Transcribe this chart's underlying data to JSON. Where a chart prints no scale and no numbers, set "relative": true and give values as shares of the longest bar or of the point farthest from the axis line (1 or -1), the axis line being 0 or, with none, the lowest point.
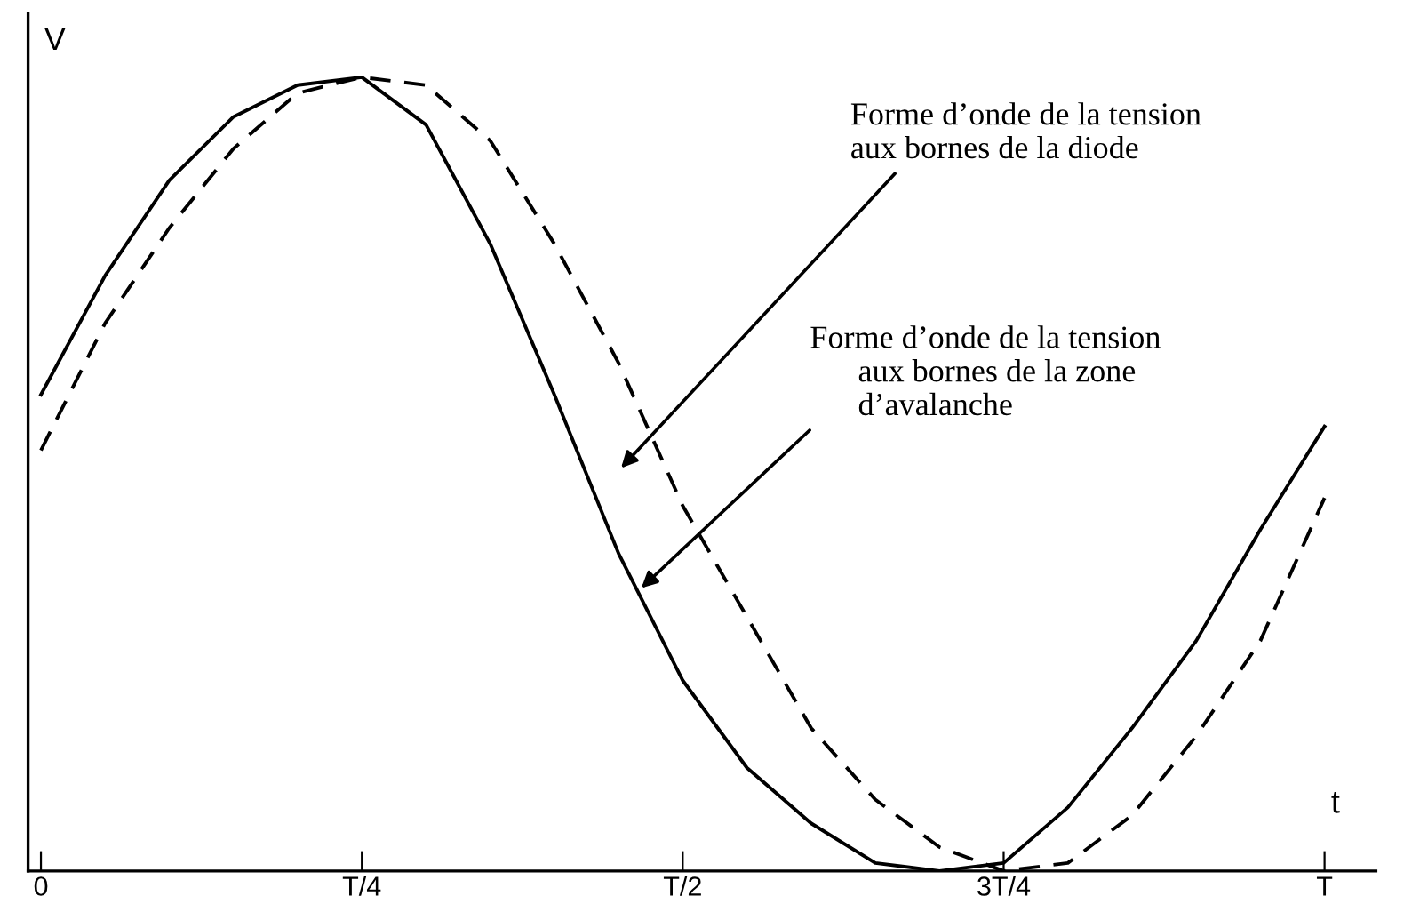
{
  "chart_data": {
    "type": "line",
    "relative": true,
    "xlabel": "t",
    "ylabel": "V",
    "categories": [
      "0",
      null,
      null,
      null,
      null,
      "T/4",
      null,
      null,
      null,
      null,
      "T/2",
      null,
      null,
      null,
      null,
      "3T/4",
      null,
      null,
      null,
      null,
      "T"
    ],
    "grid": false,
    "legend": false,
    "marker": "none",
    "series": [
      {
        "color": "#000000",
        "line_style": "solid",
        "values": [
          0.6,
          0.75,
          0.87,
          0.95,
          0.99,
          1,
          0.94,
          0.79,
          0.6,
          0.4,
          0.24,
          0.13,
          0.06,
          0.01,
          0,
          0.01,
          0.08,
          0.18,
          0.29,
          0.43,
          0.56
        ]
      },
      {
        "color": "#000000",
        "line_style": "dashed",
        "values": [
          0.53,
          0.69,
          0.81,
          0.91,
          0.98,
          1,
          0.99,
          0.92,
          0.79,
          0.64,
          0.46,
          0.32,
          0.18,
          0.09,
          0.03,
          0,
          0.01,
          0.07,
          0.17,
          0.29,
          0.47
        ]
      }
    ],
    "annotations": [
      "Forme d’onde de la tension\naux bornes de la diode",
      "Forme d’onde de la tension\n      aux bornes de la zone\n      d’avalanche"
    ]
  }
}
